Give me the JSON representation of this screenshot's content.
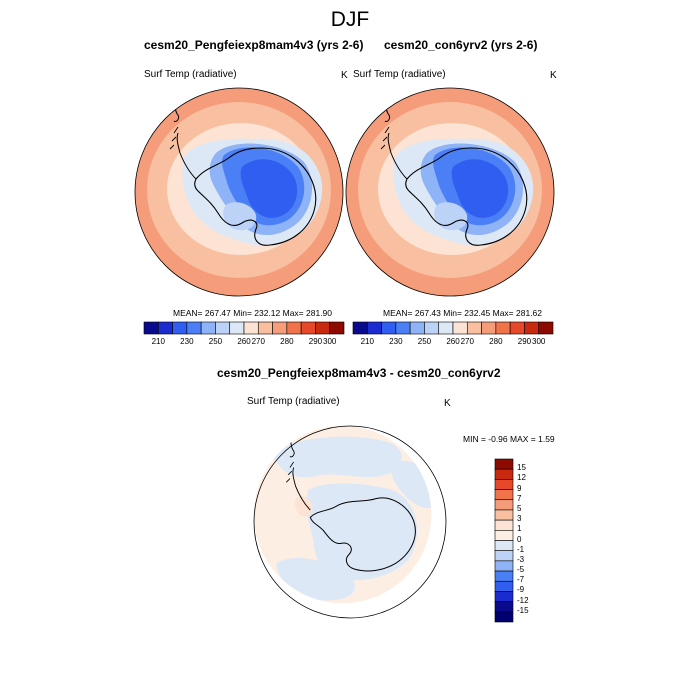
{
  "page": {
    "season_title": "DJF"
  },
  "panels": [
    {
      "title": "cesm20_Pengfeiexp8mam4v3 (yrs 2-6)",
      "variable": "Surf Temp (radiative)",
      "units": "K",
      "stats": "MEAN= 267.47  Min= 232.12  Max= 281.90"
    },
    {
      "title": "cesm20_con6yrv2 (yrs 2-6)",
      "variable": "Surf Temp (radiative)",
      "units": "K",
      "stats": "MEAN= 267.43  Min= 232.45  Max= 281.62"
    }
  ],
  "abs_colorbar": {
    "tick_labels": [
      "210",
      "230",
      "250",
      "260",
      "270",
      "280",
      "290",
      "300"
    ],
    "colors": [
      "#0a0a8c",
      "#1a2bd0",
      "#2f5ef0",
      "#4a7ff5",
      "#8fb3f7",
      "#bcd3f7",
      "#dde8f6",
      "#fce3d3",
      "#f8c0a0",
      "#f59d7a",
      "#f0734a",
      "#e8482a",
      "#c82a10",
      "#8c0a00"
    ]
  },
  "diff_panel": {
    "title": "cesm20_Pengfeiexp8mam4v3 - cesm20_con6yrv2",
    "variable": "Surf Temp (radiative)",
    "units": "K",
    "stats": "MIN =  -0.96 MAX =   1.59"
  },
  "diff_colorbar": {
    "tick_labels": [
      "15",
      "12",
      "9",
      "7",
      "5",
      "3",
      "1",
      "0",
      "-1",
      "-3",
      "-5",
      "-7",
      "-9",
      "-12",
      "-15"
    ],
    "colors": [
      "#8c0a00",
      "#c82a10",
      "#e8482a",
      "#f0734a",
      "#f59d7a",
      "#f8c0a0",
      "#fce3d3",
      "#fdeee3",
      "#dde8f6",
      "#bcd3f7",
      "#8fb3f7",
      "#4a7ff5",
      "#2f5ef0",
      "#1a2bd0",
      "#0a0a8c",
      "#000070"
    ]
  }
}
